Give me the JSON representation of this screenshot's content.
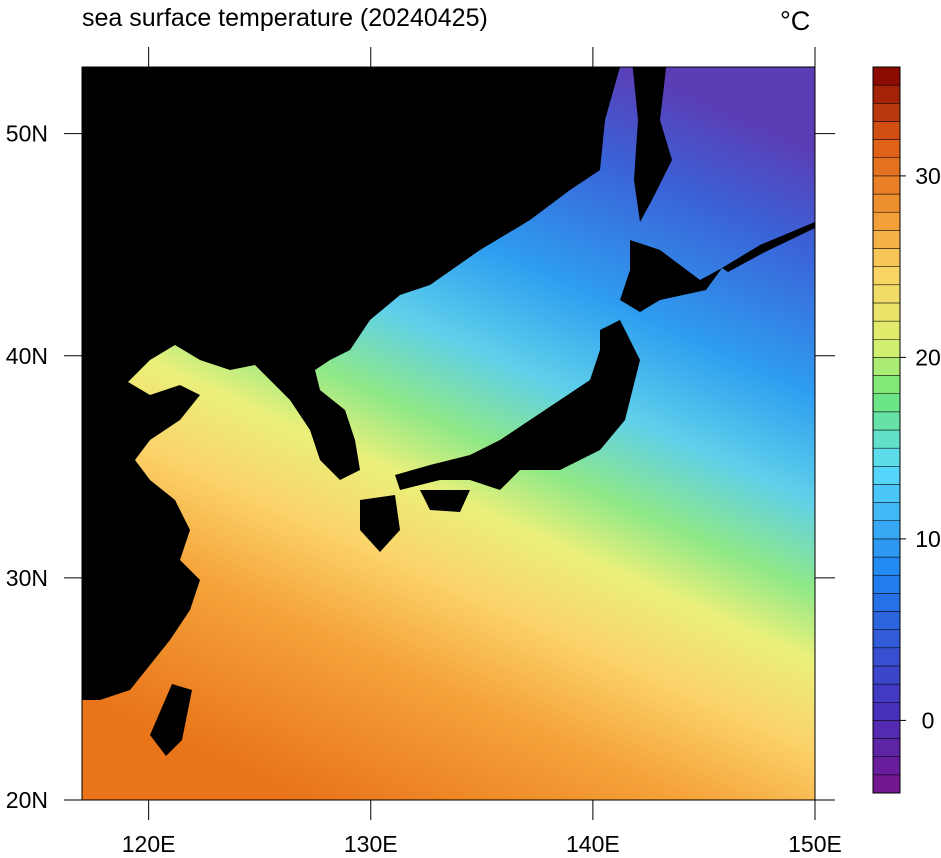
{
  "title": "sea surface temperature (20240425)",
  "unit": "°C",
  "map": {
    "xlim": [
      117,
      150
    ],
    "ylim": [
      20,
      53
    ],
    "xticks": [
      {
        "value": 120,
        "label": "120E"
      },
      {
        "value": 130,
        "label": "130E"
      },
      {
        "value": 140,
        "label": "140E"
      },
      {
        "value": 150,
        "label": "150E"
      }
    ],
    "yticks": [
      {
        "value": 20,
        "label": "20N"
      },
      {
        "value": 30,
        "label": "30N"
      },
      {
        "value": 40,
        "label": "40N"
      },
      {
        "value": 50,
        "label": "50N"
      }
    ]
  },
  "colorbar": {
    "lim": [
      -4,
      36
    ],
    "ticks": [
      0,
      10,
      20,
      30
    ]
  }
}
